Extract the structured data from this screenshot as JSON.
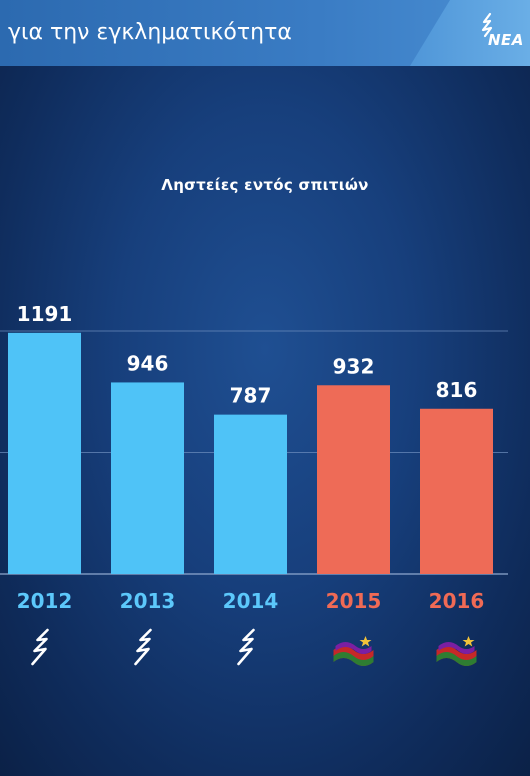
{
  "header": {
    "title": "για την εγκληματικότητα",
    "logo_text": "ΝΕΑ"
  },
  "colors": {
    "government_a": "#4fc3f7",
    "government_b": "#ee6b57"
  },
  "chart_data": {
    "type": "bar",
    "title": "Ληστείες εντός σπιτιών",
    "xlabel": "",
    "ylabel": "",
    "categories": [
      "2012",
      "2013",
      "2014",
      "2015",
      "2016"
    ],
    "values": [
      1191,
      946,
      787,
      932,
      816
    ],
    "value_labels": [
      "1191",
      "946",
      "787",
      "932",
      "816"
    ],
    "bar_colors": [
      "#4fc3f7",
      "#4fc3f7",
      "#4fc3f7",
      "#ee6b57",
      "#ee6b57"
    ],
    "year_label_colors": [
      "#5cc8fb",
      "#5cc8fb",
      "#5cc8fb",
      "#f06a55",
      "#f06a55"
    ],
    "party_icons": [
      "nd-logo-icon",
      "nd-logo-icon",
      "nd-logo-icon",
      "syriza-flag-icon",
      "syriza-flag-icon"
    ],
    "ylim": [
      0,
      1200
    ],
    "grid": true,
    "gridlines": [
      600,
      1200
    ]
  }
}
